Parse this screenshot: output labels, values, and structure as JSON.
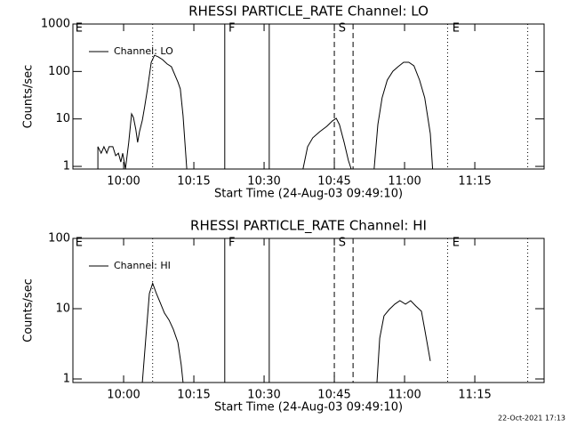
{
  "footer": "22-Oct-2021 17:13",
  "chart_data": [
    {
      "type": "line",
      "title": "RHESSI PARTICLE_RATE Channel: LO",
      "xlabel": "Start Time (24-Aug-03 09:49:10)",
      "ylabel": "Counts/sec",
      "log_y": true,
      "legend": "upper left",
      "color": "#000000",
      "xlim": [
        589.17,
        689.8
      ],
      "ylim": [
        0.88,
        1000
      ],
      "xticks": [
        {
          "value": 600,
          "label": "10:00"
        },
        {
          "value": 615,
          "label": "10:15"
        },
        {
          "value": 630,
          "label": "10:30"
        },
        {
          "value": 645,
          "label": "10:45"
        },
        {
          "value": 660,
          "label": "11:00"
        },
        {
          "value": 675,
          "label": "11:15"
        }
      ],
      "yticks": [
        1,
        10,
        100,
        1000
      ],
      "markers": [
        {
          "x": 606.2,
          "style": "dotted"
        },
        {
          "x": 621.6,
          "style": "solid"
        },
        {
          "x": 631.1,
          "style": "solid"
        },
        {
          "x": 645.0,
          "style": "dashed"
        },
        {
          "x": 649.0,
          "style": "dashed"
        },
        {
          "x": 669.2,
          "style": "dotted"
        },
        {
          "x": 686.3,
          "style": "dotted"
        }
      ],
      "flags": [
        {
          "x": 589.5,
          "label": "E"
        },
        {
          "x": 622.2,
          "label": "F"
        },
        {
          "x": 645.7,
          "label": "S"
        },
        {
          "x": 670.0,
          "label": "E"
        }
      ],
      "series": [
        {
          "name": "Channel: LO",
          "color": "#000000",
          "x": [
            594.5,
            594.5,
            595.2,
            595.8,
            596.4,
            596.9,
            597.7,
            598.3,
            598.9,
            599.4,
            599.8,
            600.4,
            601.1,
            601.7,
            602.1,
            602.6,
            603.0,
            603.4,
            604.0,
            604.5,
            605.1,
            605.9,
            606.6,
            607.4,
            608.3,
            609.3,
            610.2,
            611.0,
            611.6,
            612.1,
            612.7,
            613.1,
            613.5,
            625.0,
            638.3,
            639.3,
            640.4,
            641.9,
            643.4,
            644.6,
            645.4,
            646.1,
            647.1,
            648.0,
            648.6,
            650.0,
            653.5,
            654.3,
            655.2,
            656.3,
            657.5,
            658.6,
            659.8,
            660.9,
            662.0,
            663.2,
            664.3,
            665.5,
            666.0
          ],
          "values": [
            0.88,
            2.6,
            1.9,
            2.6,
            1.9,
            2.6,
            2.6,
            1.68,
            1.9,
            1.24,
            1.9,
            0.88,
            3.2,
            12.8,
            10.7,
            6.1,
            3.2,
            5.4,
            9.4,
            18,
            43,
            156,
            220,
            203,
            178,
            144,
            126,
            82,
            60,
            43,
            11.7,
            3.2,
            0.88,
            null,
            0.88,
            2.6,
            4.0,
            5.4,
            7.0,
            9.1,
            10.3,
            7.6,
            3.2,
            1.35,
            0.88,
            null,
            0.88,
            7.6,
            28,
            66,
            101,
            126,
            156,
            156,
            132,
            66,
            28,
            4.9,
            0.88
          ]
        }
      ]
    },
    {
      "type": "line",
      "title": "RHESSI PARTICLE_RATE Channel: HI",
      "xlabel": "Start Time (24-Aug-03 09:49:10)",
      "ylabel": "Counts/sec",
      "log_y": true,
      "legend": "upper left",
      "color": "#000000",
      "xlim": [
        589.17,
        689.8
      ],
      "ylim": [
        0.89,
        100
      ],
      "xticks": [
        {
          "value": 600,
          "label": "10:00"
        },
        {
          "value": 615,
          "label": "10:15"
        },
        {
          "value": 630,
          "label": "10:30"
        },
        {
          "value": 645,
          "label": "10:45"
        },
        {
          "value": 660,
          "label": "11:00"
        },
        {
          "value": 675,
          "label": "11:15"
        }
      ],
      "yticks": [
        1,
        10,
        100
      ],
      "markers": [
        {
          "x": 606.2,
          "style": "dotted"
        },
        {
          "x": 621.6,
          "style": "solid"
        },
        {
          "x": 631.1,
          "style": "solid"
        },
        {
          "x": 645.0,
          "style": "dashed"
        },
        {
          "x": 649.0,
          "style": "dashed"
        },
        {
          "x": 669.2,
          "style": "dotted"
        },
        {
          "x": 686.3,
          "style": "dotted"
        }
      ],
      "flags": [
        {
          "x": 589.5,
          "label": "E"
        },
        {
          "x": 622.2,
          "label": "F"
        },
        {
          "x": 645.7,
          "label": "S"
        },
        {
          "x": 670.0,
          "label": "E"
        }
      ],
      "series": [
        {
          "name": "Channel: HI",
          "color": "#000000",
          "x": [
            604.0,
            604.9,
            605.5,
            606.2,
            607.0,
            607.8,
            608.7,
            609.7,
            610.6,
            611.6,
            612.3,
            612.7,
            630.0,
            654.1,
            654.7,
            655.6,
            656.7,
            657.9,
            659.0,
            660.2,
            661.3,
            662.4,
            663.6,
            664.3,
            665.5
          ],
          "values": [
            0.89,
            5.1,
            16.4,
            23,
            16.4,
            12.3,
            8.7,
            6.9,
            5.1,
            3.3,
            1.6,
            0.89,
            null,
            0.89,
            3.8,
            7.9,
            9.7,
            11.6,
            13.0,
            11.6,
            13.0,
            10.9,
            9.2,
            5.1,
            1.8
          ]
        }
      ]
    }
  ]
}
